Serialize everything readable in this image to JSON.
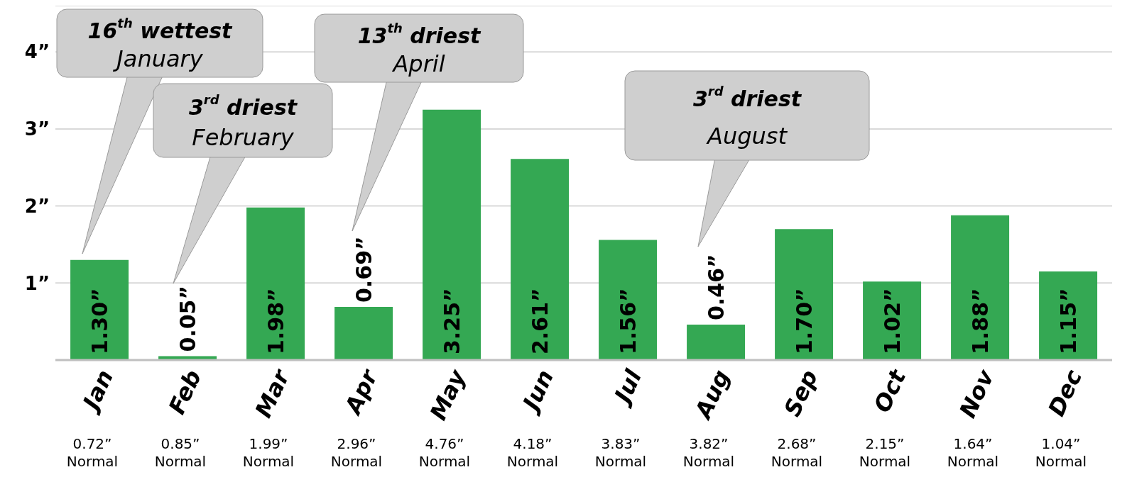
{
  "chart_data": {
    "type": "bar",
    "categories": [
      "Jan",
      "Feb",
      "Mar",
      "Apr",
      "May",
      "Jun",
      "Jul",
      "Aug",
      "Sep",
      "Oct",
      "Nov",
      "Dec"
    ],
    "values": [
      1.3,
      0.05,
      1.98,
      0.69,
      3.25,
      2.61,
      1.56,
      0.46,
      1.7,
      1.02,
      1.88,
      1.15
    ],
    "value_labels": [
      "1.30”",
      "0.05”",
      "1.98”",
      "0.69”",
      "3.25”",
      "2.61”",
      "1.56”",
      "0.46”",
      "1.70”",
      "1.02”",
      "1.88”",
      "1.15”"
    ],
    "color": "#34a853",
    "ylim": [
      0,
      4.6
    ],
    "yticks": [
      {
        "value": 1,
        "label": "1”"
      },
      {
        "value": 2,
        "label": "2”"
      },
      {
        "value": 3,
        "label": "3”"
      },
      {
        "value": 4,
        "label": "4”"
      }
    ],
    "grid": "y",
    "annotations": [
      "16$^{th}$ wettest\nJanuary",
      "3$^{rd}$ driest\nFebruary",
      "13$^{th}$ driest\nApril",
      "3$^{rd}$ driest\nAugust",
      "0.72”\nNormal",
      "0.85”\nNormal",
      "1.99”\nNormal",
      "2.96”\nNormal",
      "4.76”\nNormal",
      "4.18”\nNormal",
      "3.83”\nNormal",
      "3.82”\nNormal",
      "2.68”\nNormal",
      "2.15”\nNormal",
      "1.64”\nNormal",
      "1.04”\nNormal"
    ]
  }
}
